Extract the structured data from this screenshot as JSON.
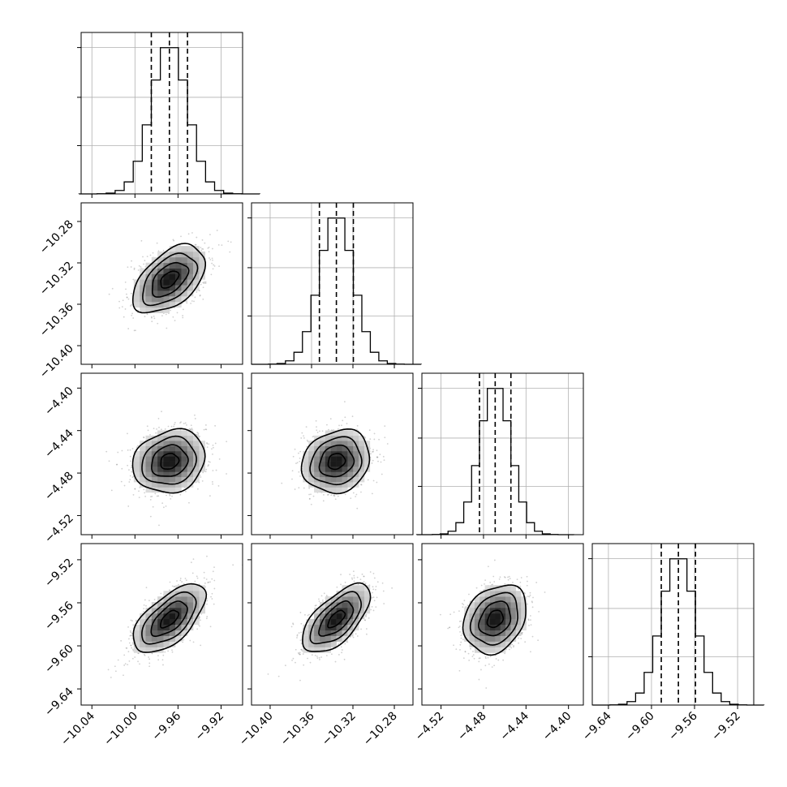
{
  "chart_data": {
    "type": "corner",
    "grid": true,
    "parameters": [
      {
        "index": 0,
        "mean": -9.968,
        "sigma": 0.0168,
        "q16": -9.9848,
        "q50": -9.968,
        "q84": -9.9512,
        "range": [
          -10.05,
          -9.9
        ],
        "ticks": [
          -10.04,
          -10.0,
          -9.96,
          -9.92
        ],
        "tick_labels": [
          "−10.04",
          "−10.00",
          "−9.96",
          "−9.92"
        ]
      },
      {
        "index": 1,
        "mean": -10.336,
        "sigma": 0.0164,
        "q16": -10.3524,
        "q50": -10.336,
        "q84": -10.3196,
        "range": [
          -10.418,
          -10.262
        ],
        "ticks": [
          -10.4,
          -10.36,
          -10.32,
          -10.28
        ],
        "tick_labels": [
          "−10.40",
          "−10.36",
          "−10.32",
          "−10.28"
        ]
      },
      {
        "index": 2,
        "mean": -4.469,
        "sigma": 0.0148,
        "q16": -4.4838,
        "q50": -4.469,
        "q84": -4.4542,
        "range": [
          -4.538,
          -4.386
        ],
        "ticks": [
          -4.52,
          -4.48,
          -4.44,
          -4.4
        ],
        "tick_labels": [
          "−4.52",
          "−4.48",
          "−4.44",
          "−4.40"
        ]
      },
      {
        "index": 3,
        "mean": -9.575,
        "sigma": 0.0159,
        "q16": -9.5909,
        "q50": -9.575,
        "q84": -9.5591,
        "range": [
          -9.655,
          -9.505
        ],
        "ticks": [
          -9.64,
          -9.6,
          -9.56,
          -9.52
        ],
        "tick_labels": [
          "−9.64",
          "−9.60",
          "−9.56",
          "−9.52"
        ]
      }
    ],
    "correlations": {
      "1-0": 0.5,
      "2-0": 0.15,
      "2-1": 0.15,
      "3-0": 0.62,
      "3-1": 0.64,
      "3-2": 0.25
    },
    "histogram_bins": 20
  }
}
